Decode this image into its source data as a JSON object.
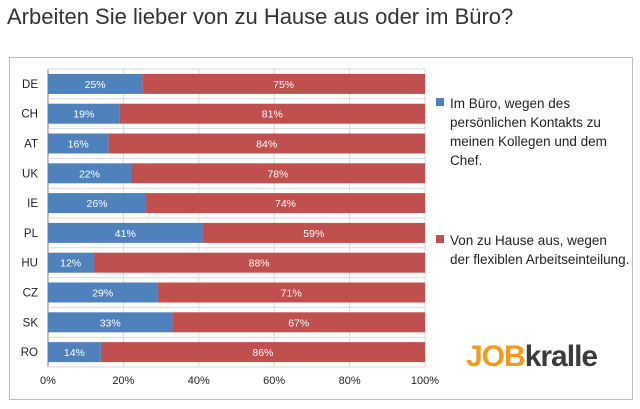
{
  "chart_data": {
    "type": "bar",
    "orientation": "horizontal-stacked-100",
    "title": "Arbeiten Sie lieber von zu Hause aus oder im Büro?",
    "categories": [
      "DE",
      "CH",
      "AT",
      "UK",
      "IE",
      "PL",
      "HU",
      "CZ",
      "SK",
      "RO"
    ],
    "series": [
      {
        "name": "Im Büro, wegen des persönlichen Kontakts zu meinen Kollegen und dem Chef.",
        "color": "#4f81bd",
        "values": [
          25,
          19,
          16,
          22,
          26,
          41,
          12,
          29,
          33,
          14
        ],
        "labels": [
          "25%",
          "19%",
          "16%",
          "22%",
          "26%",
          "41%",
          "12%",
          "29%",
          "33%",
          "14%"
        ]
      },
      {
        "name": "Von zu Hause aus, wegen der flexiblen Arbeitseinteilung.",
        "color": "#c0504d",
        "values": [
          75,
          81,
          84,
          78,
          74,
          59,
          88,
          71,
          67,
          86
        ],
        "labels": [
          "75%",
          "81%",
          "84%",
          "78%",
          "74%",
          "59%",
          "88%",
          "71%",
          "67%",
          "86%"
        ]
      }
    ],
    "xlim": [
      0,
      100
    ],
    "x_ticks": [
      "0%",
      "20%",
      "40%",
      "60%",
      "80%",
      "100%"
    ],
    "grid": true,
    "legend_position": "right"
  },
  "logo": {
    "part1": "JOB",
    "part2": "kralle"
  }
}
